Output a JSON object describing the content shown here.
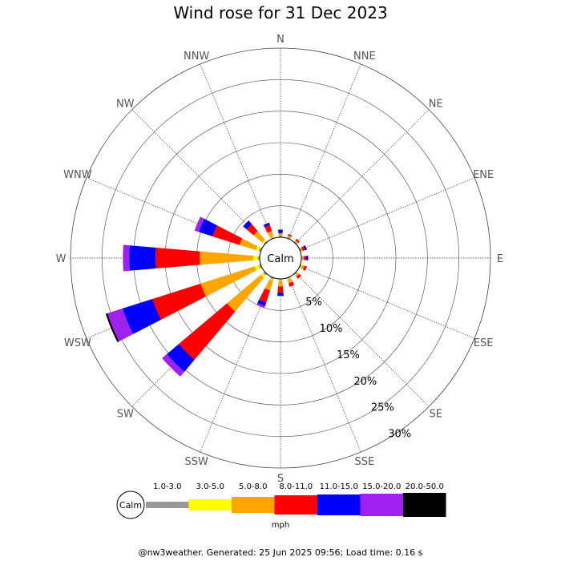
{
  "title": "Wind rose for 31 Dec 2023",
  "footer": "@nw3weather. Generated: 25 Jun 2025 09:56; Load time: 0.16 s",
  "chart_data": {
    "type": "wind-rose",
    "calm_label": "Calm",
    "directions": [
      "N",
      "NNE",
      "NE",
      "ENE",
      "E",
      "ESE",
      "SE",
      "SSE",
      "S",
      "SSW",
      "SW",
      "WSW",
      "W",
      "WNW",
      "NW",
      "NNW"
    ],
    "rings": [
      5,
      10,
      15,
      20,
      25,
      30
    ],
    "ring_labels": [
      "5%",
      "10%",
      "15%",
      "20%",
      "25%",
      "30%"
    ],
    "rmax": 30,
    "unit": "mph",
    "bins": [
      {
        "label": "1.0-3.0",
        "color": "#999999"
      },
      {
        "label": "3.0-5.0",
        "color": "#ffff00"
      },
      {
        "label": "5.0-8.0",
        "color": "#ffa500"
      },
      {
        "label": "8.0-11.0",
        "color": "#ff0000"
      },
      {
        "label": "11.0-15.0",
        "color": "#0000ff"
      },
      {
        "label": "15.0-20.0",
        "color": "#a020f0"
      },
      {
        "label": "20.0-50.0",
        "color": "#000000"
      }
    ],
    "cumulative_pct": {
      "N": [
        0.3,
        0.3,
        0.6,
        0.7,
        1.2,
        1.2,
        1.2
      ],
      "NNE": [
        0.2,
        0.2,
        0.5,
        0.6,
        0.7,
        0.7,
        0.7
      ],
      "NE": [
        0.2,
        0.2,
        0.4,
        0.7,
        0.7,
        0.7,
        0.7
      ],
      "ENE": [
        0.2,
        0.2,
        0.4,
        0.8,
        1.1,
        1.1,
        1.1
      ],
      "E": [
        0.2,
        0.2,
        0.4,
        0.7,
        1.1,
        1.1,
        1.1
      ],
      "ESE": [
        0.2,
        0.3,
        0.7,
        1.1,
        1.1,
        1.1,
        1.1
      ],
      "SE": [
        0.2,
        0.3,
        0.6,
        1.0,
        1.0,
        1.0,
        1.0
      ],
      "SSE": [
        0.2,
        0.3,
        0.9,
        1.5,
        1.5,
        1.5,
        1.5
      ],
      "S": [
        0.2,
        0.3,
        1.2,
        2.2,
        2.7,
        2.7,
        2.7
      ],
      "SSW": [
        0.3,
        0.5,
        2.1,
        4.1,
        4.7,
        5.0,
        5.0
      ],
      "SW": [
        0.3,
        0.8,
        7.8,
        17.8,
        20.3,
        21.3,
        21.3
      ],
      "WSW": [
        0.3,
        1.0,
        10.0,
        18.0,
        23.0,
        25.5,
        25.8
      ],
      "W": [
        0.3,
        1.0,
        9.5,
        16.5,
        20.7,
        21.7,
        21.7
      ],
      "WNW": [
        0.3,
        0.8,
        3.5,
        8.0,
        10.3,
        11.0,
        11.0
      ],
      "NW": [
        0.2,
        0.5,
        2.3,
        3.7,
        4.5,
        4.5,
        4.5
      ],
      "NNW": [
        0.2,
        0.3,
        1.2,
        2.2,
        2.6,
        2.6,
        2.6
      ]
    }
  }
}
